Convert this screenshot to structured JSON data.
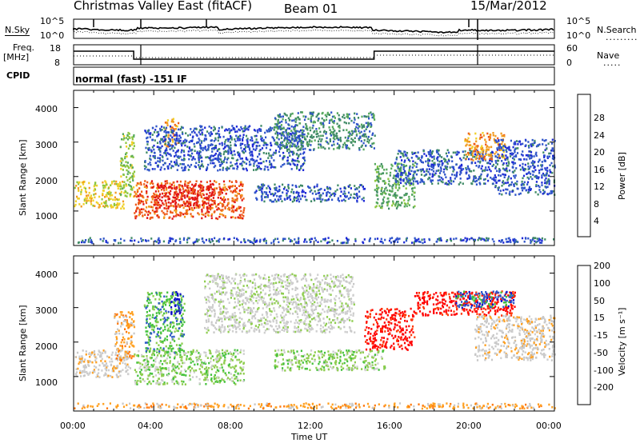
{
  "header": {
    "title": "Christmas Valley East (fitACF)",
    "beam": "Beam 01",
    "date": "15/Mar/2012"
  },
  "noise_panel": {
    "left_label": "N.Sky",
    "left_ticks": [
      "10^5",
      "10^0"
    ],
    "right_ticks": [
      "10^5",
      "10^0"
    ],
    "right_label": "N.Search"
  },
  "freq_panel": {
    "left_label_1": "Freq.",
    "left_label_2": "[MHz]",
    "left_ticks": [
      "18",
      "8"
    ],
    "right_ticks": [
      "60",
      "0"
    ],
    "right_label": "Nave"
  },
  "cpid_panel": {
    "label": "CPID",
    "text": "normal (fast) -151 IF"
  },
  "colors": {
    "power_scale": [
      "#1e2ad6",
      "#2f55c9",
      "#3f8a66",
      "#57a95d",
      "#8cc63e",
      "#f0d027",
      "#f29a1e",
      "#ee5a18",
      "#e21414"
    ],
    "velocity_scale": [
      "#ff0000",
      "#ff3a0a",
      "#ff7a10",
      "#ffa020",
      "#c8c8c8",
      "#cfcfcf",
      "#8fcd50",
      "#44c23c",
      "#2e5ac8",
      "#1010c8"
    ]
  },
  "chart_data": [
    {
      "type": "heatmap",
      "parameter": "power",
      "ylabel": "Slant Range [km]",
      "yticks": [
        "1000",
        "2000",
        "3000",
        "4000"
      ],
      "ylim": [
        0,
        4500
      ],
      "xlim": [
        0,
        24
      ],
      "colorbar": {
        "label": "Power [dB]",
        "ticks": [
          "4",
          "8",
          "12",
          "16",
          "20",
          "24",
          "28"
        ]
      },
      "regions": [
        {
          "t0": 0.0,
          "t1": 2.5,
          "r0": 1100,
          "r1": 1900,
          "level": 5
        },
        {
          "t0": 2.3,
          "t1": 3.0,
          "r0": 1400,
          "r1": 3300,
          "level": 4
        },
        {
          "t0": 3.0,
          "t1": 8.5,
          "r0": 800,
          "r1": 1900,
          "level": 7
        },
        {
          "t0": 4.0,
          "t1": 7.0,
          "r0": 1100,
          "r1": 1800,
          "level": 8
        },
        {
          "t0": 4.5,
          "t1": 5.2,
          "r0": 2900,
          "r1": 3700,
          "level": 6
        },
        {
          "t0": 3.5,
          "t1": 11.5,
          "r0": 2200,
          "r1": 3500,
          "level": 1
        },
        {
          "t0": 9.0,
          "t1": 14.5,
          "r0": 1300,
          "r1": 1800,
          "level": 1
        },
        {
          "t0": 10.0,
          "t1": 15.0,
          "r0": 2800,
          "r1": 3900,
          "level": 2
        },
        {
          "t0": 15.0,
          "t1": 17.0,
          "r0": 1100,
          "r1": 2400,
          "level": 3
        },
        {
          "t0": 16.0,
          "t1": 21.0,
          "r0": 1800,
          "r1": 2800,
          "level": 1
        },
        {
          "t0": 19.5,
          "t1": 21.5,
          "r0": 2500,
          "r1": 3300,
          "level": 6
        },
        {
          "t0": 21.0,
          "t1": 24.0,
          "r0": 1500,
          "r1": 3100,
          "level": 1
        },
        {
          "t0": 0.0,
          "t1": 24.0,
          "r0": 100,
          "r1": 250,
          "level": 1
        }
      ]
    },
    {
      "type": "heatmap",
      "parameter": "velocity",
      "ylabel": "Slant Range [km]",
      "yticks": [
        "1000",
        "2000",
        "3000",
        "4000"
      ],
      "ylim": [
        0,
        4500
      ],
      "xlim": [
        0,
        24
      ],
      "xlabel": "Time UT",
      "xticks": [
        "00:00",
        "04:00",
        "08:00",
        "12:00",
        "16:00",
        "20:00",
        "00:00"
      ],
      "colorbar": {
        "label": "Velocity [m s⁻¹]",
        "ticks": [
          "-200",
          "-100",
          "-50",
          "-15",
          "15",
          "50",
          "100",
          "200"
        ]
      },
      "regions": [
        {
          "t0": 0.0,
          "t1": 2.8,
          "r0": 1000,
          "r1": 1800,
          "level": 4
        },
        {
          "t0": 2.0,
          "t1": 3.0,
          "r0": 1500,
          "r1": 2900,
          "level": 3
        },
        {
          "t0": 3.0,
          "t1": 8.5,
          "r0": 800,
          "r1": 1800,
          "level": 6
        },
        {
          "t0": 3.5,
          "t1": 5.5,
          "r0": 1700,
          "r1": 3500,
          "level": 7
        },
        {
          "t0": 4.8,
          "t1": 5.3,
          "r0": 2800,
          "r1": 3500,
          "level": 9
        },
        {
          "t0": 6.5,
          "t1": 14.0,
          "r0": 2300,
          "r1": 4000,
          "level": 5
        },
        {
          "t0": 10.0,
          "t1": 15.5,
          "r0": 1200,
          "r1": 1800,
          "level": 6
        },
        {
          "t0": 14.5,
          "t1": 17.0,
          "r0": 1800,
          "r1": 3000,
          "level": 0
        },
        {
          "t0": 17.0,
          "t1": 22.0,
          "r0": 2800,
          "r1": 3500,
          "level": 0
        },
        {
          "t0": 19.0,
          "t1": 22.0,
          "r0": 3000,
          "r1": 3500,
          "level": 8
        },
        {
          "t0": 20.0,
          "t1": 24.0,
          "r0": 1500,
          "r1": 2800,
          "level": 4
        },
        {
          "t0": 0.0,
          "t1": 24.0,
          "r0": 100,
          "r1": 250,
          "level": 3
        }
      ]
    }
  ]
}
